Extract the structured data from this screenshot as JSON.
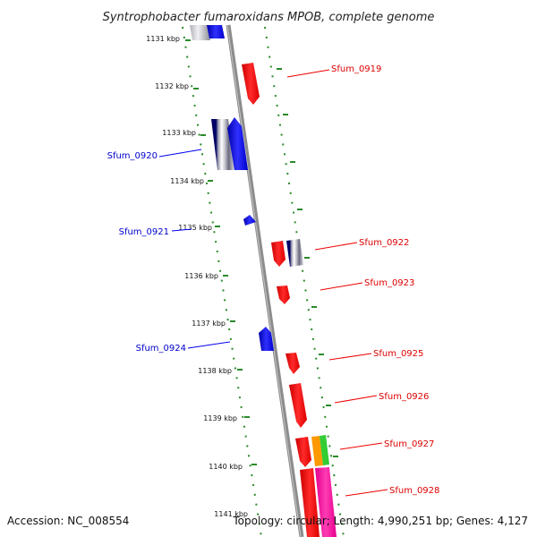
{
  "title": "Syntrophobacter fumaroxidans MPOB, complete genome",
  "accession": "Accession: NC_008554",
  "topology": "Topology: circular; Length: 4,990,251 bp; Genes: 4,127",
  "ruler": {
    "unit": "kbp",
    "ticks": [
      "1131 kbp",
      "1132 kbp",
      "1133 kbp",
      "1134 kbp",
      "1135 kbp",
      "1136 kbp",
      "1137 kbp",
      "1138 kbp",
      "1139 kbp",
      "1140 kbp",
      "1141 kbp"
    ]
  },
  "colors": {
    "backbone": "#8c8c8c",
    "reverse_strand": "#0000ee",
    "forward_strand": "#ee0000",
    "dotted_guide": "#2a8a2a",
    "pink": "#ff1aa8",
    "orange": "#ff9900",
    "green": "#33cc33",
    "navy": "#000066"
  },
  "gene_labels": {
    "sfum_0919": "Sfum_0919",
    "sfum_0920": "Sfum_0920",
    "sfum_0921": "Sfum_0921",
    "sfum_0922": "Sfum_0922",
    "sfum_0923": "Sfum_0923",
    "sfum_0924": "Sfum_0924",
    "sfum_0925": "Sfum_0925",
    "sfum_0926": "Sfum_0926",
    "sfum_0927": "Sfum_0927",
    "sfum_0928": "Sfum_0928"
  }
}
